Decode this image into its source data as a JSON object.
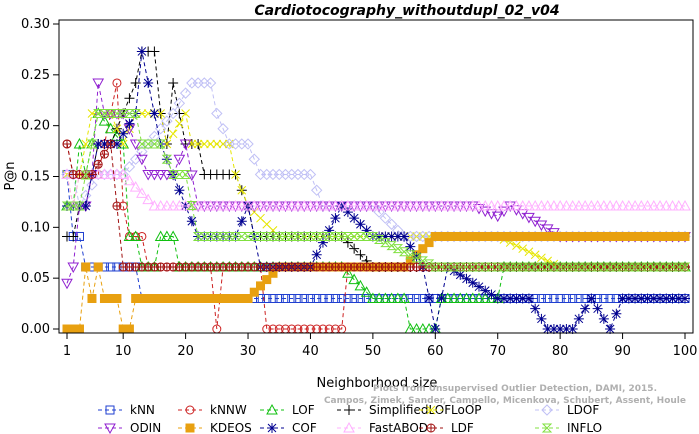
{
  "chart_data": {
    "type": "line",
    "title": "Cardiotocography_withoutdupl_02_v04",
    "xlabel": "Neighborhood size",
    "ylabel": "P@n",
    "xlim": [
      1,
      100
    ],
    "ylim": [
      0,
      0.3
    ],
    "xticks": [
      1,
      10,
      20,
      30,
      40,
      50,
      60,
      70,
      80,
      90,
      100
    ],
    "xtick_labels": [
      "1",
      "10",
      "20",
      "30",
      "40",
      "50",
      "60",
      "70",
      "80",
      "90",
      "100"
    ],
    "yticks": [
      0.0,
      0.05,
      0.1,
      0.15,
      0.2,
      0.25,
      0.3
    ],
    "ytick_labels": [
      "0.00",
      "0.05",
      "0.10",
      "0.15",
      "0.20",
      "0.25",
      "0.30"
    ],
    "grid": false,
    "legend_position": "bottom",
    "watermark": [
      "Plots from Unsupervised Outlier Detection, DAMI, 2015.",
      "Campos, Zimek, Sander, Campello, Micenkova, Schubert, Assent, Houle"
    ],
    "series": [
      {
        "name": "kNN",
        "color": "#1f3fd0",
        "marker": "square",
        "points": [
          [
            1,
            0.152
          ],
          [
            2,
            0.091
          ],
          [
            3,
            0.091
          ],
          [
            4,
            0.061
          ],
          [
            8,
            0.061
          ],
          [
            12,
            0.061
          ],
          [
            13,
            0.03
          ],
          [
            20,
            0.03
          ],
          [
            40,
            0.03
          ],
          [
            60,
            0.03
          ],
          [
            80,
            0.03
          ],
          [
            100,
            0.03
          ]
        ]
      },
      {
        "name": "kNNW",
        "color": "#cc2020",
        "marker": "circle",
        "points": [
          [
            1,
            0.182
          ],
          [
            2,
            0.152
          ],
          [
            3,
            0.152
          ],
          [
            4,
            0.152
          ],
          [
            6,
            0.152
          ],
          [
            7,
            0.182
          ],
          [
            8,
            0.212
          ],
          [
            9,
            0.242
          ],
          [
            10,
            0.121
          ],
          [
            11,
            0.091
          ],
          [
            13,
            0.091
          ],
          [
            14,
            0.061
          ],
          [
            20,
            0.061
          ],
          [
            24,
            0.061
          ],
          [
            25,
            0.0
          ],
          [
            26,
            0.061
          ],
          [
            32,
            0.061
          ],
          [
            33,
            0.0
          ],
          [
            45,
            0.0
          ],
          [
            46,
            0.061
          ],
          [
            60,
            0.061
          ],
          [
            70,
            0.061
          ],
          [
            80,
            0.061
          ],
          [
            100,
            0.061
          ]
        ]
      },
      {
        "name": "LOF",
        "color": "#10c010",
        "marker": "triangle",
        "points": [
          [
            1,
            0.121
          ],
          [
            2,
            0.121
          ],
          [
            3,
            0.182
          ],
          [
            4,
            0.152
          ],
          [
            6,
            0.212
          ],
          [
            10,
            0.182
          ],
          [
            11,
            0.091
          ],
          [
            12,
            0.091
          ],
          [
            13,
            0.061
          ],
          [
            14,
            0.061
          ],
          [
            15,
            0.061
          ],
          [
            16,
            0.091
          ],
          [
            18,
            0.091
          ],
          [
            19,
            0.061
          ],
          [
            25,
            0.061
          ],
          [
            30,
            0.061
          ],
          [
            35,
            0.061
          ],
          [
            40,
            0.061
          ],
          [
            45,
            0.061
          ],
          [
            50,
            0.03
          ],
          [
            55,
            0.03
          ],
          [
            56,
            0.0
          ],
          [
            60,
            0.0
          ],
          [
            61,
            0.03
          ],
          [
            70,
            0.03
          ],
          [
            71,
            0.061
          ],
          [
            100,
            0.061
          ]
        ]
      },
      {
        "name": "SimplifiedLOF",
        "color": "#000000",
        "marker": "plus",
        "points": [
          [
            1,
            0.091
          ],
          [
            2,
            0.091
          ],
          [
            3,
            0.121
          ],
          [
            4,
            0.121
          ],
          [
            5,
            0.152
          ],
          [
            6,
            0.182
          ],
          [
            8,
            0.182
          ],
          [
            10,
            0.212
          ],
          [
            12,
            0.242
          ],
          [
            13,
            0.273
          ],
          [
            14,
            0.273
          ],
          [
            15,
            0.273
          ],
          [
            16,
            0.212
          ],
          [
            17,
            0.182
          ],
          [
            18,
            0.242
          ],
          [
            19,
            0.212
          ],
          [
            20,
            0.182
          ],
          [
            22,
            0.182
          ],
          [
            23,
            0.152
          ],
          [
            26,
            0.152
          ],
          [
            28,
            0.152
          ],
          [
            30,
            0.121
          ],
          [
            31,
            0.091
          ],
          [
            35,
            0.091
          ],
          [
            40,
            0.091
          ],
          [
            45,
            0.091
          ],
          [
            50,
            0.061
          ],
          [
            55,
            0.061
          ],
          [
            60,
            0.061
          ],
          [
            70,
            0.061
          ],
          [
            80,
            0.061
          ],
          [
            100,
            0.061
          ]
        ]
      },
      {
        "name": "LoOP",
        "color": "#e6e600",
        "marker": "x",
        "points": [
          [
            1,
            0.152
          ],
          [
            2,
            0.121
          ],
          [
            3,
            0.152
          ],
          [
            4,
            0.182
          ],
          [
            5,
            0.212
          ],
          [
            8,
            0.212
          ],
          [
            10,
            0.182
          ],
          [
            12,
            0.212
          ],
          [
            16,
            0.212
          ],
          [
            17,
            0.182
          ],
          [
            20,
            0.212
          ],
          [
            21,
            0.182
          ],
          [
            25,
            0.182
          ],
          [
            27,
            0.182
          ],
          [
            28,
            0.152
          ],
          [
            30,
            0.121
          ],
          [
            35,
            0.091
          ],
          [
            40,
            0.091
          ],
          [
            50,
            0.091
          ],
          [
            60,
            0.091
          ],
          [
            70,
            0.091
          ],
          [
            80,
            0.061
          ],
          [
            90,
            0.061
          ],
          [
            100,
            0.061
          ]
        ]
      },
      {
        "name": "LDOF",
        "color": "#c0c0f5",
        "marker": "diamond",
        "points": [
          [
            1,
            0.152
          ],
          [
            2,
            0.152
          ],
          [
            3,
            0.121
          ],
          [
            6,
            0.152
          ],
          [
            10,
            0.152
          ],
          [
            14,
            0.182
          ],
          [
            18,
            0.212
          ],
          [
            21,
            0.242
          ],
          [
            23,
            0.242
          ],
          [
            24,
            0.242
          ],
          [
            25,
            0.212
          ],
          [
            27,
            0.182
          ],
          [
            30,
            0.182
          ],
          [
            32,
            0.152
          ],
          [
            40,
            0.152
          ],
          [
            42,
            0.121
          ],
          [
            50,
            0.121
          ],
          [
            55,
            0.091
          ],
          [
            60,
            0.091
          ],
          [
            70,
            0.091
          ],
          [
            80,
            0.091
          ],
          [
            90,
            0.091
          ],
          [
            100,
            0.091
          ]
        ]
      },
      {
        "name": "ODIN",
        "color": "#9020d0",
        "marker": "triangle-down",
        "points": [
          [
            1,
            0.045
          ],
          [
            2,
            0.061
          ],
          [
            3,
            0.121
          ],
          [
            4,
            0.121
          ],
          [
            5,
            0.152
          ],
          [
            6,
            0.242
          ],
          [
            7,
            0.212
          ],
          [
            10,
            0.212
          ],
          [
            14,
            0.152
          ],
          [
            18,
            0.152
          ],
          [
            20,
            0.182
          ],
          [
            22,
            0.121
          ],
          [
            28,
            0.121
          ],
          [
            32,
            0.121
          ],
          [
            40,
            0.121
          ],
          [
            50,
            0.121
          ],
          [
            60,
            0.121
          ],
          [
            66,
            0.121
          ],
          [
            70,
            0.111
          ],
          [
            72,
            0.121
          ],
          [
            80,
            0.091
          ],
          [
            86,
            0.091
          ],
          [
            88,
            0.091
          ],
          [
            90,
            0.091
          ],
          [
            100,
            0.091
          ]
        ]
      },
      {
        "name": "KDEOS",
        "color": "#e8a010",
        "marker": "square-filled",
        "points": [
          [
            1,
            0.0
          ],
          [
            2,
            0.0
          ],
          [
            3,
            0.0
          ],
          [
            4,
            0.061
          ],
          [
            5,
            0.03
          ],
          [
            6,
            0.061
          ],
          [
            7,
            0.03
          ],
          [
            9,
            0.03
          ],
          [
            10,
            0.0
          ],
          [
            11,
            0.0
          ],
          [
            12,
            0.03
          ],
          [
            30,
            0.03
          ],
          [
            35,
            0.061
          ],
          [
            40,
            0.061
          ],
          [
            50,
            0.061
          ],
          [
            55,
            0.061
          ],
          [
            60,
            0.091
          ],
          [
            70,
            0.091
          ],
          [
            80,
            0.091
          ],
          [
            100,
            0.091
          ]
        ]
      },
      {
        "name": "COF",
        "color": "#000090",
        "marker": "asterisk",
        "points": [
          [
            1,
            0.121
          ],
          [
            2,
            0.121
          ],
          [
            3,
            0.121
          ],
          [
            4,
            0.121
          ],
          [
            5,
            0.152
          ],
          [
            6,
            0.182
          ],
          [
            9,
            0.182
          ],
          [
            12,
            0.212
          ],
          [
            13,
            0.273
          ],
          [
            14,
            0.242
          ],
          [
            16,
            0.182
          ],
          [
            18,
            0.152
          ],
          [
            20,
            0.121
          ],
          [
            22,
            0.091
          ],
          [
            25,
            0.091
          ],
          [
            28,
            0.091
          ],
          [
            30,
            0.121
          ],
          [
            32,
            0.061
          ],
          [
            35,
            0.061
          ],
          [
            40,
            0.061
          ],
          [
            45,
            0.121
          ],
          [
            50,
            0.091
          ],
          [
            55,
            0.091
          ],
          [
            58,
            0.061
          ],
          [
            60,
            0.0
          ],
          [
            62,
            0.061
          ],
          [
            70,
            0.03
          ],
          [
            75,
            0.03
          ],
          [
            78,
            0.0
          ],
          [
            82,
            0.0
          ],
          [
            85,
            0.03
          ],
          [
            88,
            0.0
          ],
          [
            90,
            0.03
          ],
          [
            100,
            0.03
          ]
        ]
      },
      {
        "name": "FastABOD",
        "color": "#ffb0ff",
        "marker": "triangle",
        "points": [
          [
            1,
            0.152
          ],
          [
            2,
            0.121
          ],
          [
            3,
            0.152
          ],
          [
            5,
            0.152
          ],
          [
            10,
            0.152
          ],
          [
            15,
            0.121
          ],
          [
            20,
            0.121
          ],
          [
            30,
            0.121
          ],
          [
            40,
            0.121
          ],
          [
            50,
            0.121
          ],
          [
            60,
            0.121
          ],
          [
            70,
            0.121
          ],
          [
            80,
            0.121
          ],
          [
            90,
            0.121
          ],
          [
            100,
            0.121
          ]
        ]
      },
      {
        "name": "LDF",
        "color": "#a01010",
        "marker": "circle-plus",
        "points": [
          [
            1,
            0.182
          ],
          [
            2,
            0.152
          ],
          [
            3,
            0.152
          ],
          [
            5,
            0.152
          ],
          [
            8,
            0.182
          ],
          [
            9,
            0.121
          ],
          [
            10,
            0.061
          ],
          [
            15,
            0.061
          ],
          [
            20,
            0.061
          ],
          [
            25,
            0.061
          ],
          [
            30,
            0.061
          ],
          [
            35,
            0.061
          ],
          [
            40,
            0.061
          ],
          [
            50,
            0.061
          ],
          [
            60,
            0.061
          ],
          [
            70,
            0.061
          ],
          [
            80,
            0.061
          ],
          [
            90,
            0.061
          ],
          [
            100,
            0.061
          ]
        ]
      },
      {
        "name": "INFLO",
        "color": "#80e040",
        "marker": "hourglass",
        "points": [
          [
            1,
            0.121
          ],
          [
            2,
            0.121
          ],
          [
            3,
            0.121
          ],
          [
            5,
            0.182
          ],
          [
            6,
            0.212
          ],
          [
            10,
            0.212
          ],
          [
            12,
            0.212
          ],
          [
            13,
            0.182
          ],
          [
            16,
            0.182
          ],
          [
            18,
            0.152
          ],
          [
            20,
            0.152
          ],
          [
            22,
            0.091
          ],
          [
            25,
            0.091
          ],
          [
            30,
            0.091
          ],
          [
            40,
            0.091
          ],
          [
            50,
            0.091
          ],
          [
            60,
            0.061
          ],
          [
            70,
            0.061
          ],
          [
            80,
            0.061
          ],
          [
            90,
            0.061
          ],
          [
            100,
            0.061
          ]
        ]
      }
    ]
  }
}
